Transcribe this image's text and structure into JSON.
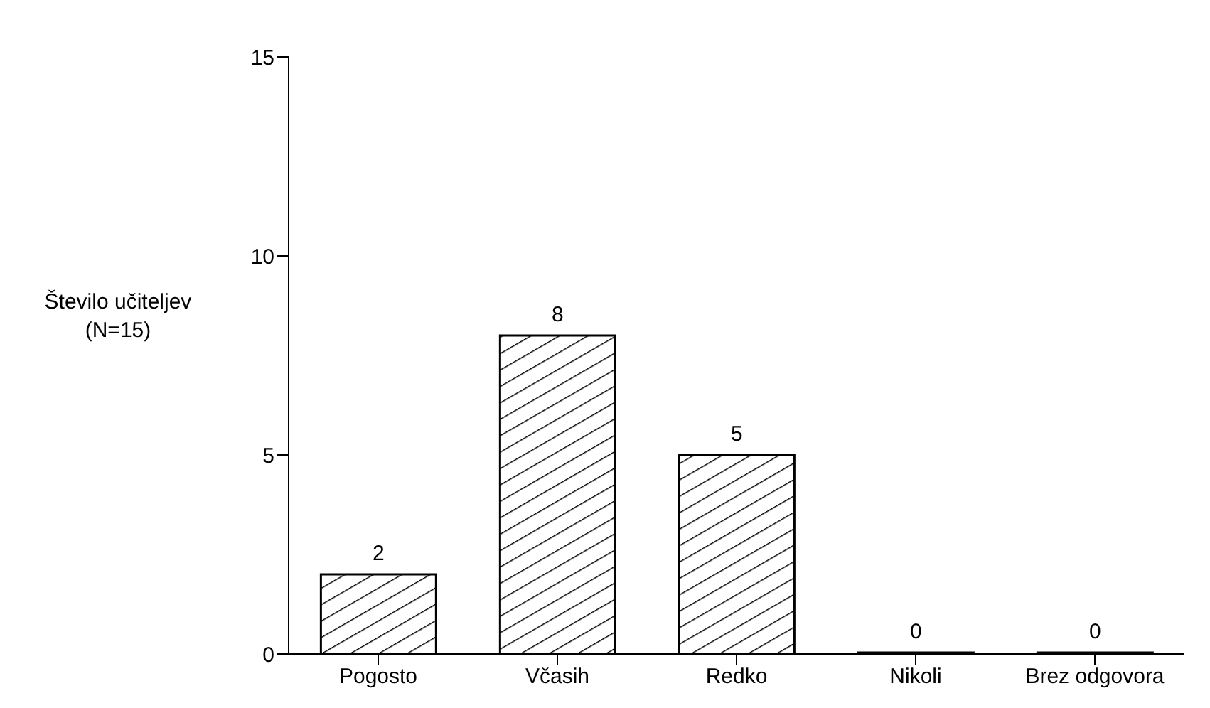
{
  "chart_data": {
    "type": "bar",
    "ylabel": "Število učiteljev (N=15)",
    "categories": [
      "Pogosto",
      "Včasih",
      "Redko",
      "Nikoli",
      "Brez odgovora"
    ],
    "values": [
      2,
      8,
      5,
      0,
      0
    ],
    "color": "#000000",
    "ylim": [
      0,
      15
    ],
    "yticks": [
      0,
      5,
      10,
      15
    ],
    "grid": false,
    "data_labels": true
  }
}
